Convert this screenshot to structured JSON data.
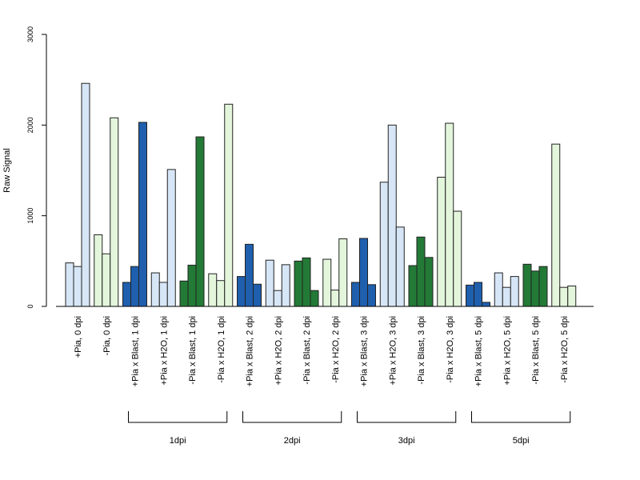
{
  "chart_data": {
    "type": "bar",
    "ylabel": "Raw Signal",
    "ylim": [
      0,
      3000
    ],
    "yticks": [
      "0",
      "1000",
      "2000",
      "3000"
    ],
    "grid": false,
    "legend": "none",
    "colors": {
      "plus_blast": "#1f5fad",
      "plus_control": "#d7e6f7",
      "minus_blast": "#237a36",
      "minus_control": "#e3f6dc",
      "border": "#222222"
    },
    "categories": [
      {
        "label": "+Pia, 0 dpi",
        "color": "plus_control",
        "values": [
          480,
          440,
          2460
        ]
      },
      {
        "label": "-Pia, 0 dpi",
        "color": "minus_control",
        "values": [
          790,
          580,
          2080
        ]
      },
      {
        "label": "+Pia x Blast, 1 dpi",
        "color": "plus_blast",
        "values": [
          265,
          440,
          2030
        ]
      },
      {
        "label": "+Pia x H2O, 1 dpi",
        "color": "plus_control",
        "values": [
          370,
          265,
          1510
        ]
      },
      {
        "label": "-Pia x Blast, 1 dpi",
        "color": "minus_blast",
        "values": [
          280,
          455,
          1870
        ]
      },
      {
        "label": "-Pia x H2O, 1 dpi",
        "color": "minus_control",
        "values": [
          360,
          285,
          2230
        ]
      },
      {
        "label": "+Pia x Blast, 2 dpi",
        "color": "plus_blast",
        "values": [
          330,
          685,
          245
        ]
      },
      {
        "label": "+Pia x H2O, 2 dpi",
        "color": "plus_control",
        "values": [
          510,
          175,
          460
        ]
      },
      {
        "label": "-Pia x Blast, 2 dpi",
        "color": "minus_blast",
        "values": [
          500,
          535,
          175
        ]
      },
      {
        "label": "-Pia x H2O, 2 dpi",
        "color": "minus_control",
        "values": [
          520,
          180,
          745
        ]
      },
      {
        "label": "+Pia x Blast, 3 dpi",
        "color": "plus_blast",
        "values": [
          265,
          750,
          240
        ]
      },
      {
        "label": "+Pia x H2O, 3 dpi",
        "color": "plus_control",
        "values": [
          1370,
          2000,
          875
        ]
      },
      {
        "label": "-Pia x Blast, 3 dpi",
        "color": "minus_blast",
        "values": [
          450,
          765,
          540
        ]
      },
      {
        "label": "-Pia x H2O, 3 dpi",
        "color": "minus_control",
        "values": [
          1425,
          2020,
          1050
        ]
      },
      {
        "label": "+Pia x Blast, 5 dpi",
        "color": "plus_blast",
        "values": [
          235,
          265,
          45
        ]
      },
      {
        "label": "+Pia x H2O, 5 dpi",
        "color": "plus_control",
        "values": [
          370,
          210,
          330
        ]
      },
      {
        "label": "-Pia x Blast, 5 dpi",
        "color": "minus_blast",
        "values": [
          465,
          390,
          440
        ]
      },
      {
        "label": "-Pia x H2O, 5 dpi",
        "color": "minus_control",
        "values": [
          1790,
          210,
          225
        ]
      }
    ],
    "groups": [
      {
        "label": "1dpi",
        "from": 2,
        "to": 5
      },
      {
        "label": "2dpi",
        "from": 6,
        "to": 9
      },
      {
        "label": "3dpi",
        "from": 10,
        "to": 13
      },
      {
        "label": "5dpi",
        "from": 14,
        "to": 17
      }
    ]
  }
}
